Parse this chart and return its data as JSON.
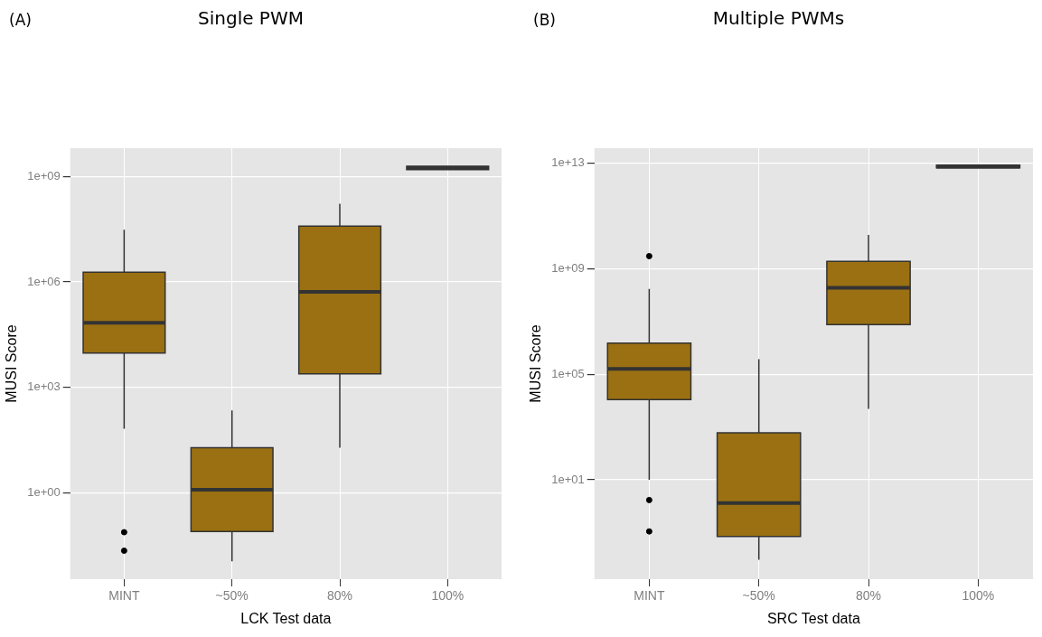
{
  "chart_data": [
    {
      "type": "box",
      "title": "Single PWM",
      "annotations": [
        "(A)"
      ],
      "xlabel": "LCK Test data",
      "ylabel": "MUSI Score",
      "color": "#9a7012",
      "categories": [
        "MINT",
        "~50%",
        "80%",
        "100%"
      ],
      "boxes": [
        {
          "low": 66,
          "q1": 9500,
          "median": 69000,
          "q3": 1900000,
          "high": 31000000,
          "outliers": [
            0.074,
            0.022
          ]
        },
        {
          "low": 0.011,
          "q1": 0.078,
          "median": 1.2,
          "q3": 19,
          "high": 220
        },
        {
          "low": 19,
          "q1": 2400,
          "median": 520000,
          "q3": 39000000,
          "high": 170000000
        },
        {
          "low": 1600000000,
          "q1": 1600000000,
          "median": 1800000000,
          "q3": 2000000000,
          "high": 2000000000
        }
      ],
      "log": "y",
      "ylim": [
        0.0034,
        6500000000
      ],
      "yticks": [
        {
          "value": 1,
          "label": "1e+00"
        },
        {
          "value": 1000,
          "label": "1e+03"
        },
        {
          "value": 1000000,
          "label": "1e+06"
        },
        {
          "value": 1000000000,
          "label": "1e+09"
        }
      ],
      "grid": true
    },
    {
      "type": "box",
      "title": "Multiple PWMs",
      "annotations": [
        "(B)"
      ],
      "xlabel": "SRC Test data",
      "ylabel": "MUSI Score",
      "color": "#9a7012",
      "categories": [
        "MINT",
        "~50%",
        "80%",
        "100%"
      ],
      "boxes": [
        {
          "low": 10,
          "q1": 11000,
          "median": 160000,
          "q3": 1500000,
          "high": 170000000,
          "outliers": [
            3000000000,
            1.7,
            0.11
          ]
        },
        {
          "low": 0.0093,
          "q1": 0.071,
          "median": 1.3,
          "q3": 600,
          "high": 370000
        },
        {
          "low": 4900,
          "q1": 7600000,
          "median": 190000000,
          "q3": 1900000000,
          "high": 19000000000
        },
        {
          "low": 6600000000000,
          "q1": 6600000000000,
          "median": 7400000000000,
          "q3": 8500000000000,
          "high": 8500000000000
        }
      ],
      "log": "y",
      "ylim": [
        0.0017,
        37000000000000
      ],
      "yticks": [
        {
          "value": 10,
          "label": "1e+01"
        },
        {
          "value": 100000,
          "label": "1e+05"
        },
        {
          "value": 1000000000,
          "label": "1e+09"
        },
        {
          "value": 10000000000000,
          "label": "1e+13"
        }
      ],
      "grid": true
    }
  ]
}
